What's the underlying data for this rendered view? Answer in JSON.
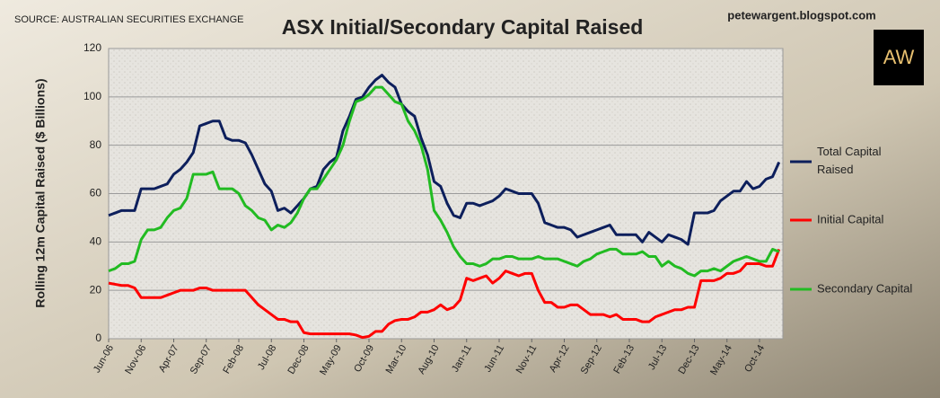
{
  "source": "SOURCE: AUSTRALIAN SECURITIES EXCHANGE",
  "blog": "petewargent.blogspot.com",
  "logo": "AW",
  "chart_data": {
    "type": "line",
    "title": "ASX Initial/Secondary Capital Raised",
    "y_label": "Rolling 12m Capital Raised ($ Billions)",
    "categories": [
      "Jun-06",
      null,
      null,
      null,
      null,
      "Nov-06",
      null,
      null,
      null,
      null,
      "Apr-07",
      null,
      null,
      null,
      null,
      "Sep-07",
      null,
      null,
      null,
      null,
      "Feb-08",
      null,
      null,
      null,
      null,
      "Jul-08",
      null,
      null,
      null,
      null,
      "Dec-08",
      null,
      null,
      null,
      null,
      "May-09",
      null,
      null,
      null,
      null,
      "Oct-09",
      null,
      null,
      null,
      null,
      "Mar-10",
      null,
      null,
      null,
      null,
      "Aug-10",
      null,
      null,
      null,
      null,
      "Jan-11",
      null,
      null,
      null,
      null,
      "Jun-11",
      null,
      null,
      null,
      null,
      "Nov-11",
      null,
      null,
      null,
      null,
      "Apr-12",
      null,
      null,
      null,
      null,
      "Sep-12",
      null,
      null,
      null,
      null,
      "Feb-13",
      null,
      null,
      null,
      null,
      "Jul-13",
      null,
      null,
      null,
      null,
      "Dec-13",
      null,
      null,
      null,
      null,
      "May-14",
      null,
      null,
      null,
      null,
      "Oct-14",
      null,
      null,
      null
    ],
    "series": [
      {
        "name": "Total Capital Raised",
        "color": "#0d1f5c",
        "values": [
          51,
          52,
          53,
          53,
          53,
          62,
          62,
          62,
          63,
          64,
          68,
          70,
          73,
          77,
          88,
          89,
          90,
          90,
          83,
          82,
          82,
          81,
          76,
          70,
          64,
          61,
          53,
          54,
          52,
          55,
          58,
          62,
          63,
          70,
          73,
          75,
          86,
          92,
          99,
          100,
          104,
          107,
          109,
          106,
          104,
          97,
          94,
          92,
          83,
          76,
          65,
          63,
          56,
          51,
          50,
          56,
          56,
          55,
          56,
          57,
          59,
          62,
          61,
          60,
          60,
          60,
          56,
          48,
          47,
          46,
          46,
          45,
          42,
          43,
          44,
          45,
          46,
          47,
          43,
          43,
          43,
          43,
          40,
          44,
          42,
          40,
          43,
          42,
          41,
          39,
          52,
          52,
          52,
          53,
          57,
          59,
          61,
          61,
          65,
          62,
          63,
          66,
          67,
          73
        ]
      },
      {
        "name": "Initial Capital",
        "color": "#ff0000",
        "values": [
          23,
          22.5,
          22,
          22,
          21,
          17,
          17,
          17,
          17,
          18,
          19,
          20,
          20,
          20,
          21,
          21,
          20,
          20,
          20,
          20,
          20,
          20,
          17,
          14,
          12,
          10,
          8,
          8,
          7,
          7,
          2.5,
          2,
          2,
          2,
          2,
          2,
          2,
          2,
          1.5,
          0.5,
          1,
          3,
          3,
          6,
          7.5,
          8,
          8,
          9,
          11,
          11,
          12,
          14,
          12,
          13,
          16,
          25,
          24,
          25,
          26,
          23,
          25,
          28,
          27,
          26,
          27,
          27,
          20,
          15,
          15,
          13,
          13,
          14,
          14,
          12,
          10,
          10,
          10,
          9,
          10,
          8,
          8,
          8,
          7,
          7,
          9,
          10,
          11,
          12,
          12,
          13,
          13,
          24,
          24,
          24,
          25,
          27,
          27,
          28,
          31,
          31,
          31,
          30,
          30,
          37
        ]
      },
      {
        "name": "Secondary Capital",
        "color": "#22bb22",
        "values": [
          28,
          29,
          31,
          31,
          32,
          41,
          45,
          45,
          46,
          50,
          53,
          54,
          58,
          68,
          68,
          68,
          69,
          62,
          62,
          62,
          60,
          55,
          53,
          50,
          49,
          45,
          47,
          46,
          48,
          52,
          58,
          62,
          62,
          66,
          70,
          74,
          80,
          90,
          98,
          99,
          101,
          104,
          104,
          101,
          98,
          97,
          90,
          86,
          80,
          70,
          53,
          49,
          44,
          38,
          34,
          31,
          31,
          30,
          31,
          33,
          33,
          34,
          34,
          33,
          33,
          33,
          34,
          33,
          33,
          33,
          32,
          31,
          30,
          32,
          33,
          35,
          36,
          37,
          37,
          35,
          35,
          35,
          36,
          34,
          34,
          30,
          32,
          30,
          29,
          27,
          26,
          28,
          28,
          29,
          28,
          30,
          32,
          33,
          34,
          33,
          32,
          32,
          37,
          36
        ]
      }
    ],
    "ylim": [
      0,
      120
    ],
    "yticks": [
      0,
      20,
      40,
      60,
      80,
      100,
      120
    ],
    "grid": true
  }
}
